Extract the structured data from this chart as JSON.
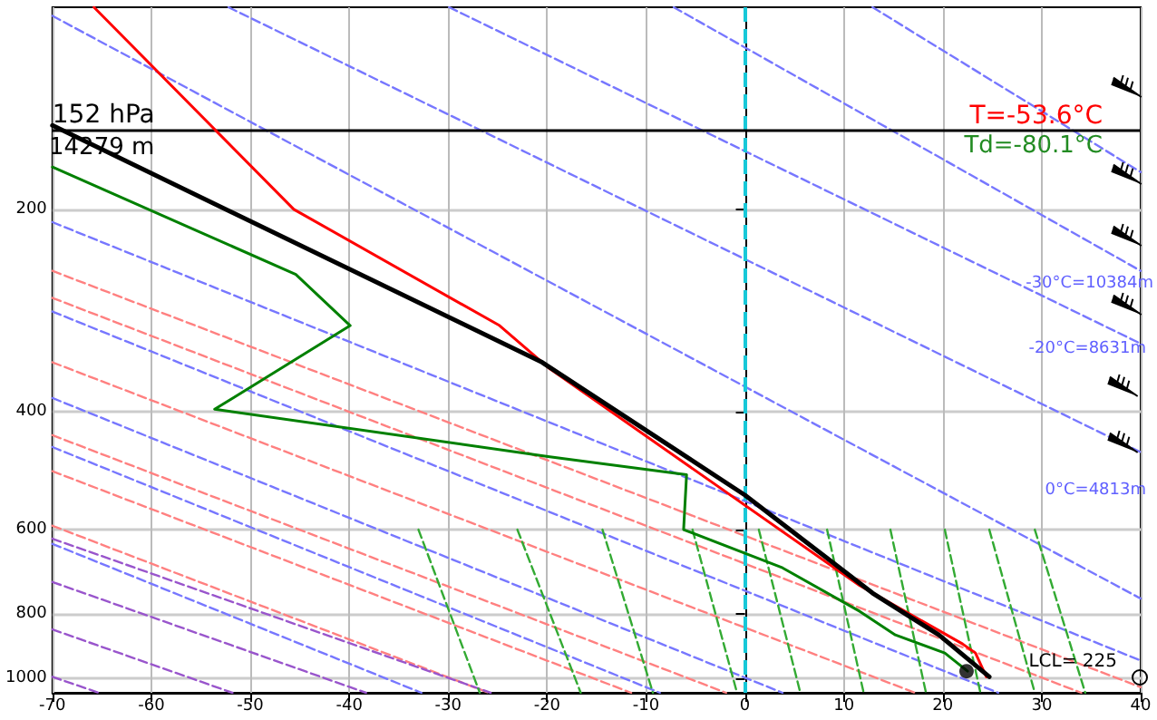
{
  "chart_data": {
    "type": "line",
    "xlim": [
      -70,
      40
    ],
    "xticks": [
      -70,
      -60,
      -50,
      -40,
      -30,
      -20,
      -10,
      0,
      10,
      20,
      30,
      40
    ],
    "ylim": [
      1050,
      100
    ],
    "yticks": [
      200,
      400,
      600,
      800,
      1000
    ],
    "log": "y",
    "grid": true,
    "marker": "none",
    "series": [
      {
        "color": "#7777ff",
        "line_style": "dashed",
        "x": [
          -70,
          40
        ],
        "values": [
          103,
          760
        ]
      },
      {
        "color": "#7777ff",
        "line_style": "dashed",
        "x": [
          -52.2,
          40
        ],
        "values": [
          100,
          460
        ]
      },
      {
        "color": "#7777ff",
        "line_style": "dashed",
        "x": [
          -29.9,
          40
        ],
        "values": [
          100,
          317
        ]
      },
      {
        "color": "#7777ff",
        "line_style": "dashed",
        "x": [
          -7.2,
          40
        ],
        "values": [
          100,
          247
        ]
      },
      {
        "color": "#7777ff",
        "line_style": "dashed",
        "x": [
          12.9,
          40
        ],
        "values": [
          100,
          176
        ]
      },
      {
        "color": "#7777ff",
        "line_style": "dashed",
        "x": [
          -70,
          40
        ],
        "values": [
          209,
          940
        ]
      },
      {
        "color": "#7777ff",
        "line_style": "dashed",
        "x": [
          -70,
          25.6
        ],
        "values": [
          284,
          1050
        ]
      },
      {
        "color": "#7777ff",
        "line_style": "dashed",
        "x": [
          -70,
          3.8
        ],
        "values": [
          382,
          1050
        ]
      },
      {
        "color": "#7777ff",
        "line_style": "dashed",
        "x": [
          -70,
          -8.6
        ],
        "values": [
          452,
          1050
        ]
      },
      {
        "color": "#7777ff",
        "line_style": "dashed",
        "x": [
          -70,
          -32.7
        ],
        "values": [
          630,
          1050
        ]
      },
      {
        "color": "#ff8080",
        "line_style": "dashed",
        "x": [
          -70,
          40
        ],
        "values": [
          247,
          1030
        ]
      },
      {
        "color": "#ff8080",
        "line_style": "dashed",
        "x": [
          -70,
          34
        ],
        "values": [
          271,
          1050
        ]
      },
      {
        "color": "#ff8080",
        "line_style": "dashed",
        "x": [
          -70,
          17.2
        ],
        "values": [
          338,
          1050
        ]
      },
      {
        "color": "#ff8080",
        "line_style": "dashed",
        "x": [
          -70,
          -1.9
        ],
        "values": [
          434,
          1050
        ]
      },
      {
        "color": "#ff8080",
        "line_style": "dashed",
        "x": [
          -70,
          -11.5
        ],
        "values": [
          491,
          1050
        ]
      },
      {
        "color": "#ff8080",
        "line_style": "dashed",
        "x": [
          -70,
          -25.9
        ],
        "values": [
          592,
          1050
        ]
      },
      {
        "color": "#9955cc",
        "line_style": "dashed",
        "x": [
          -70,
          -25.7
        ],
        "values": [
          619,
          1050
        ]
      },
      {
        "color": "#9955cc",
        "line_style": "dashed",
        "x": [
          -70,
          -38.3
        ],
        "values": [
          718,
          1050
        ]
      },
      {
        "color": "#9955cc",
        "line_style": "dashed",
        "x": [
          -70,
          -51.8
        ],
        "values": [
          845,
          1050
        ]
      },
      {
        "color": "#9955cc",
        "line_style": "dashed",
        "x": [
          -70,
          -65.3
        ],
        "values": [
          994,
          1050
        ]
      },
      {
        "color": "#33aa33",
        "line_style": "dashed",
        "x": [
          -33,
          -26.8
        ],
        "values": [
          600,
          1050
        ]
      },
      {
        "color": "#33aa33",
        "line_style": "dashed",
        "x": [
          -23,
          -16.6
        ],
        "values": [
          600,
          1050
        ]
      },
      {
        "color": "#33aa33",
        "line_style": "dashed",
        "x": [
          -14.4,
          -9.3
        ],
        "values": [
          600,
          1050
        ]
      },
      {
        "color": "#33aa33",
        "line_style": "dashed",
        "x": [
          -5.3,
          -0.8
        ],
        "values": [
          600,
          1050
        ]
      },
      {
        "color": "#33aa33",
        "line_style": "dashed",
        "x": [
          1.4,
          5.6
        ],
        "values": [
          600,
          1050
        ]
      },
      {
        "color": "#33aa33",
        "line_style": "dashed",
        "x": [
          8.3,
          12
        ],
        "values": [
          600,
          1050
        ]
      },
      {
        "color": "#33aa33",
        "line_style": "dashed",
        "x": [
          14.7,
          18.3
        ],
        "values": [
          600,
          1050
        ]
      },
      {
        "color": "#33aa33",
        "line_style": "dashed",
        "x": [
          20.2,
          23.8
        ],
        "values": [
          600,
          1050
        ]
      },
      {
        "color": "#33aa33",
        "line_style": "dashed",
        "x": [
          24.7,
          29.3
        ],
        "values": [
          600,
          1050
        ]
      },
      {
        "color": "#33aa33",
        "line_style": "dashed",
        "x": [
          29.3,
          34.4
        ],
        "values": [
          600,
          1050
        ]
      },
      {
        "color": "#ff0000",
        "line_style": "solid",
        "x": [
          -65.8,
          -45.6,
          -24.8,
          -19.9,
          11.6,
          22,
          23.3,
          24.4
        ],
        "values": [
          100,
          200,
          298,
          344,
          727,
          888,
          916,
          994
        ]
      },
      {
        "color": "#008000",
        "line_style": "solid",
        "x": [
          -70,
          -45.4,
          -39.9,
          -53.6,
          -19.9,
          -5.9,
          -6.2,
          3.8,
          11.6,
          15.2,
          20.2,
          22.5
        ],
        "values": [
          173,
          250,
          298,
          397,
          467,
          497,
          600,
          684,
          794,
          861,
          916,
          975
        ]
      },
      {
        "color": "#000000",
        "line_style": "solid",
        "x": [
          -70,
          -20.5,
          0,
          12.9,
          19.6,
          24.7
        ],
        "values": [
          150,
          338,
          533,
          746,
          861,
          994
        ]
      },
      {
        "type": "scatter",
        "color": "#000000",
        "marker": "circle",
        "x": [
          22.4
        ],
        "values": [
          975
        ]
      }
    ],
    "ref_lines": [
      {
        "axis": "x",
        "value": 0,
        "color": "#17c8d8",
        "line_style": "dashed"
      },
      {
        "axis": "y",
        "value": 152,
        "color": "#000000",
        "line_style": "solid",
        "label": "152 hPa"
      }
    ],
    "annotations": [
      "14279 m",
      "T=-53.6°C",
      "Td=-80.1°C",
      "-30°C=10384m",
      "-20°C=8631m",
      "0°C=4813m",
      "LCL= 225"
    ]
  }
}
